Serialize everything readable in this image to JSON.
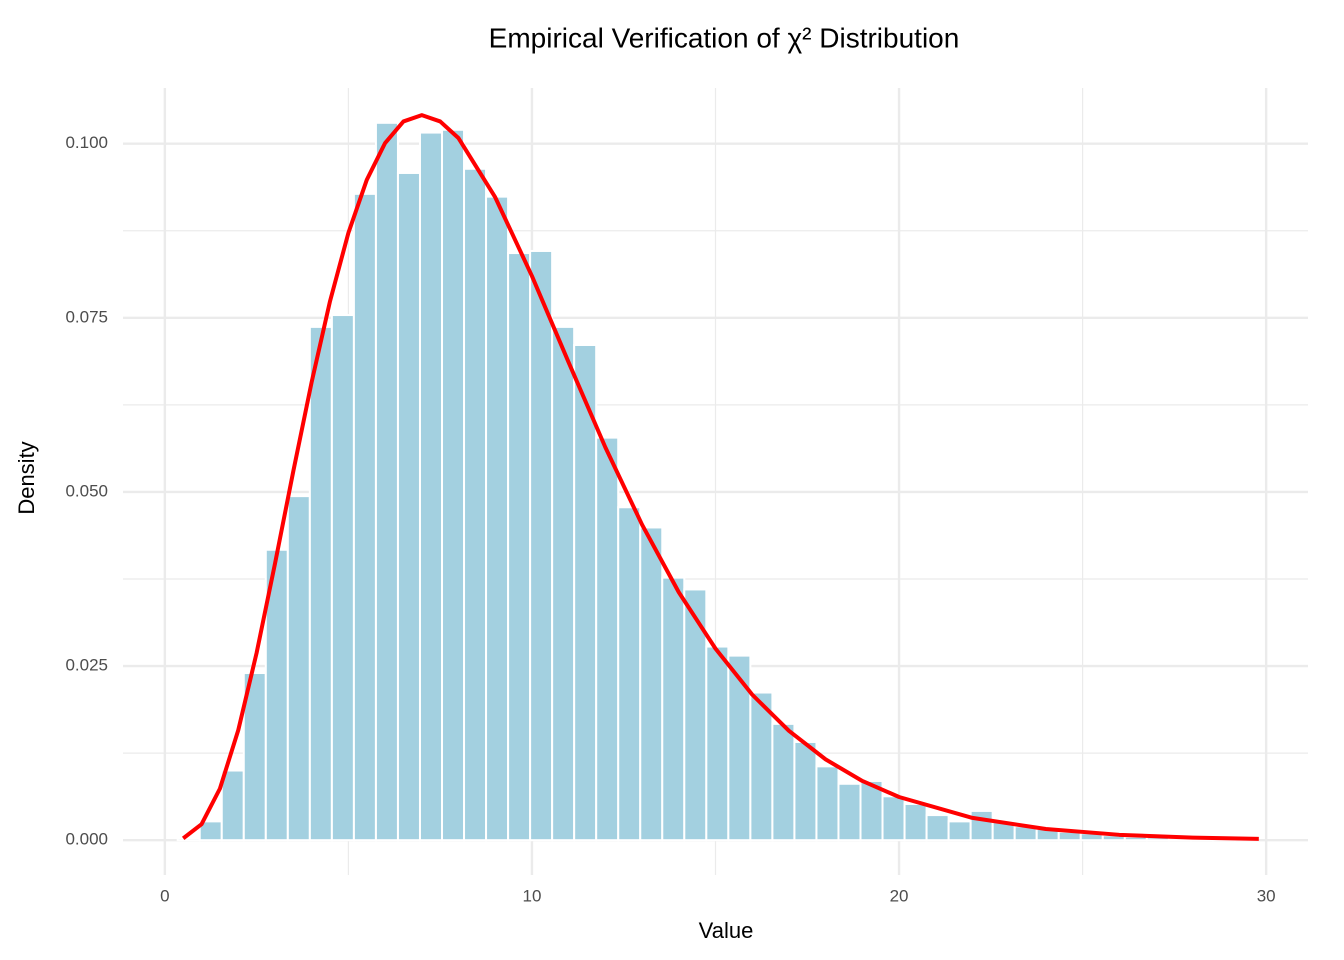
{
  "chart_data": {
    "type": "histogram",
    "title": "Empirical Verification of χ² Distribution",
    "x_label": "Value",
    "y_label": "Density",
    "bins": [
      0.35,
      0.95,
      1.55,
      2.15,
      2.75,
      3.35,
      3.95,
      4.55,
      5.15,
      5.75,
      6.35,
      6.95,
      7.55,
      8.15,
      8.75,
      9.35,
      9.95,
      10.55,
      11.15,
      11.75,
      12.35,
      12.95,
      13.55,
      14.15,
      14.75,
      15.35,
      15.95,
      16.55,
      17.15,
      17.75,
      18.35,
      18.95,
      19.55,
      20.15,
      20.75,
      21.35,
      21.95,
      22.55,
      23.15,
      23.75,
      24.35,
      24.95,
      25.55,
      26.15,
      26.75,
      27.35,
      27.95,
      28.55,
      29.15,
      29.75
    ],
    "values": [
      0.0003,
      0.0027,
      0.01,
      0.024,
      0.0417,
      0.0494,
      0.0737,
      0.0754,
      0.0928,
      0.103,
      0.0958,
      0.1016,
      0.102,
      0.0964,
      0.0924,
      0.0843,
      0.0846,
      0.0737,
      0.0711,
      0.0578,
      0.0478,
      0.0449,
      0.0377,
      0.036,
      0.0278,
      0.0265,
      0.0212,
      0.0167,
      0.0141,
      0.0106,
      0.0081,
      0.0085,
      0.0063,
      0.0052,
      0.0036,
      0.0027,
      0.0042,
      0.0026,
      0.002,
      0.0016,
      0.0012,
      0.001,
      0.0007,
      0.0005,
      0.0004,
      0.0003,
      0.0002,
      0.0002,
      0.0001
    ],
    "color": "#a3d0e0",
    "line": {
      "color": "#ff0000",
      "x": [
        0.5,
        1,
        1.5,
        2,
        2.5,
        3,
        3.5,
        4,
        4.5,
        5,
        5.5,
        6,
        6.5,
        7,
        7.5,
        8,
        9,
        10,
        11,
        12,
        13,
        14,
        15,
        16,
        17,
        18,
        19,
        20,
        22,
        24,
        26,
        28,
        29.8
      ],
      "values": [
        0.00026,
        0.0023,
        0.0074,
        0.0158,
        0.0269,
        0.0397,
        0.053,
        0.0658,
        0.0774,
        0.0872,
        0.0948,
        0.1001,
        0.1032,
        0.1041,
        0.1032,
        0.1008,
        0.0923,
        0.081,
        0.0686,
        0.0564,
        0.0453,
        0.0356,
        0.0275,
        0.0209,
        0.0157,
        0.0116,
        0.0085,
        0.0062,
        0.0032,
        0.0016,
        0.00077,
        0.00037,
        0.00018
      ]
    },
    "xlim": [
      -1.14,
      31.14
    ],
    "ylim": [
      -0.005,
      0.108
    ],
    "xticks": [
      0,
      10,
      20,
      30
    ],
    "yticks": [
      {
        "value": 0,
        "label": "0.000"
      },
      {
        "value": 0.025,
        "label": "0.025"
      },
      {
        "value": 0.05,
        "label": "0.050"
      },
      {
        "value": 0.075,
        "label": "0.075"
      },
      {
        "value": 0.1,
        "label": "0.100"
      }
    ],
    "grid": true
  }
}
